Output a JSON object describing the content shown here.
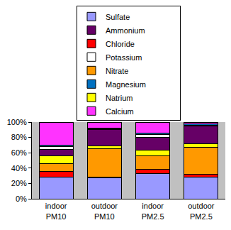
{
  "chart_data": {
    "type": "bar",
    "stacked": true,
    "legend": "top",
    "grid": false,
    "categories": [
      "indoor PM10",
      "outdoor PM10",
      "indoor PM2.5",
      "outdoor PM2.5"
    ],
    "series": [
      {
        "name": "Sulfate",
        "color": "#9999ff",
        "values": [
          28,
          27.5,
          33,
          28.5
        ]
      },
      {
        "name": "Chloride",
        "color": "#ff0000",
        "values": [
          7.5,
          0.5,
          5,
          3.5
        ]
      },
      {
        "name": "Nitrate",
        "color": "#ff9900",
        "values": [
          10.5,
          37,
          18,
          35.5
        ]
      },
      {
        "name": "Natrium",
        "color": "#ffff00",
        "values": [
          10,
          4,
          7,
          4
        ]
      },
      {
        "name": "Ammonium",
        "color": "#660066",
        "values": [
          8,
          21.5,
          17,
          23.5
        ]
      },
      {
        "name": "Potassium",
        "color": "#ffffff",
        "values": [
          4,
          0.5,
          4,
          0.5
        ]
      },
      {
        "name": "Magnesium",
        "color": "#0070c0",
        "values": [
          2,
          1,
          2,
          2
        ]
      },
      {
        "name": "Calcium",
        "color": "#ff33ff",
        "values": [
          30,
          8,
          14,
          2.5
        ]
      }
    ],
    "ylim": [
      0,
      100
    ],
    "yticks": [
      {
        "value": 0,
        "label": "0%"
      },
      {
        "value": 20,
        "label": "20%"
      },
      {
        "value": 40,
        "label": "40%"
      },
      {
        "value": 60,
        "label": "60%"
      },
      {
        "value": 80,
        "label": "80%"
      },
      {
        "value": 100,
        "label": "100%"
      }
    ]
  }
}
